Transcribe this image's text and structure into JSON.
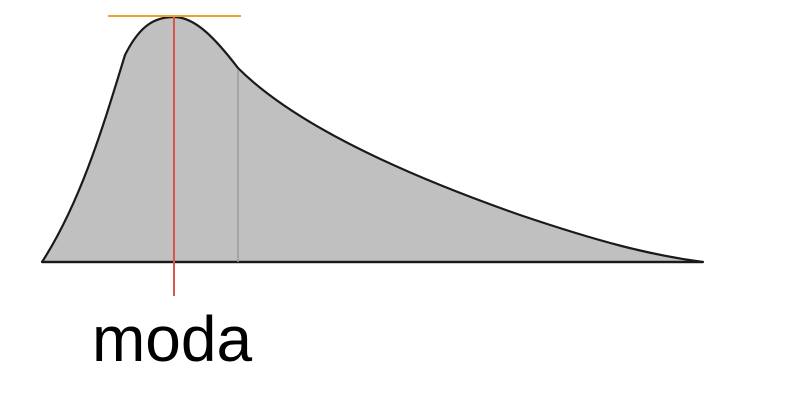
{
  "diagram": {
    "mode_label": "moda"
  },
  "colors": {
    "curve_fill": "#c0c0c0",
    "curve_stroke": "#1a1a1a",
    "mode_line": "#d9534f",
    "peak_tangent": "#f0a030",
    "inner_line": "#9a9a9a"
  }
}
